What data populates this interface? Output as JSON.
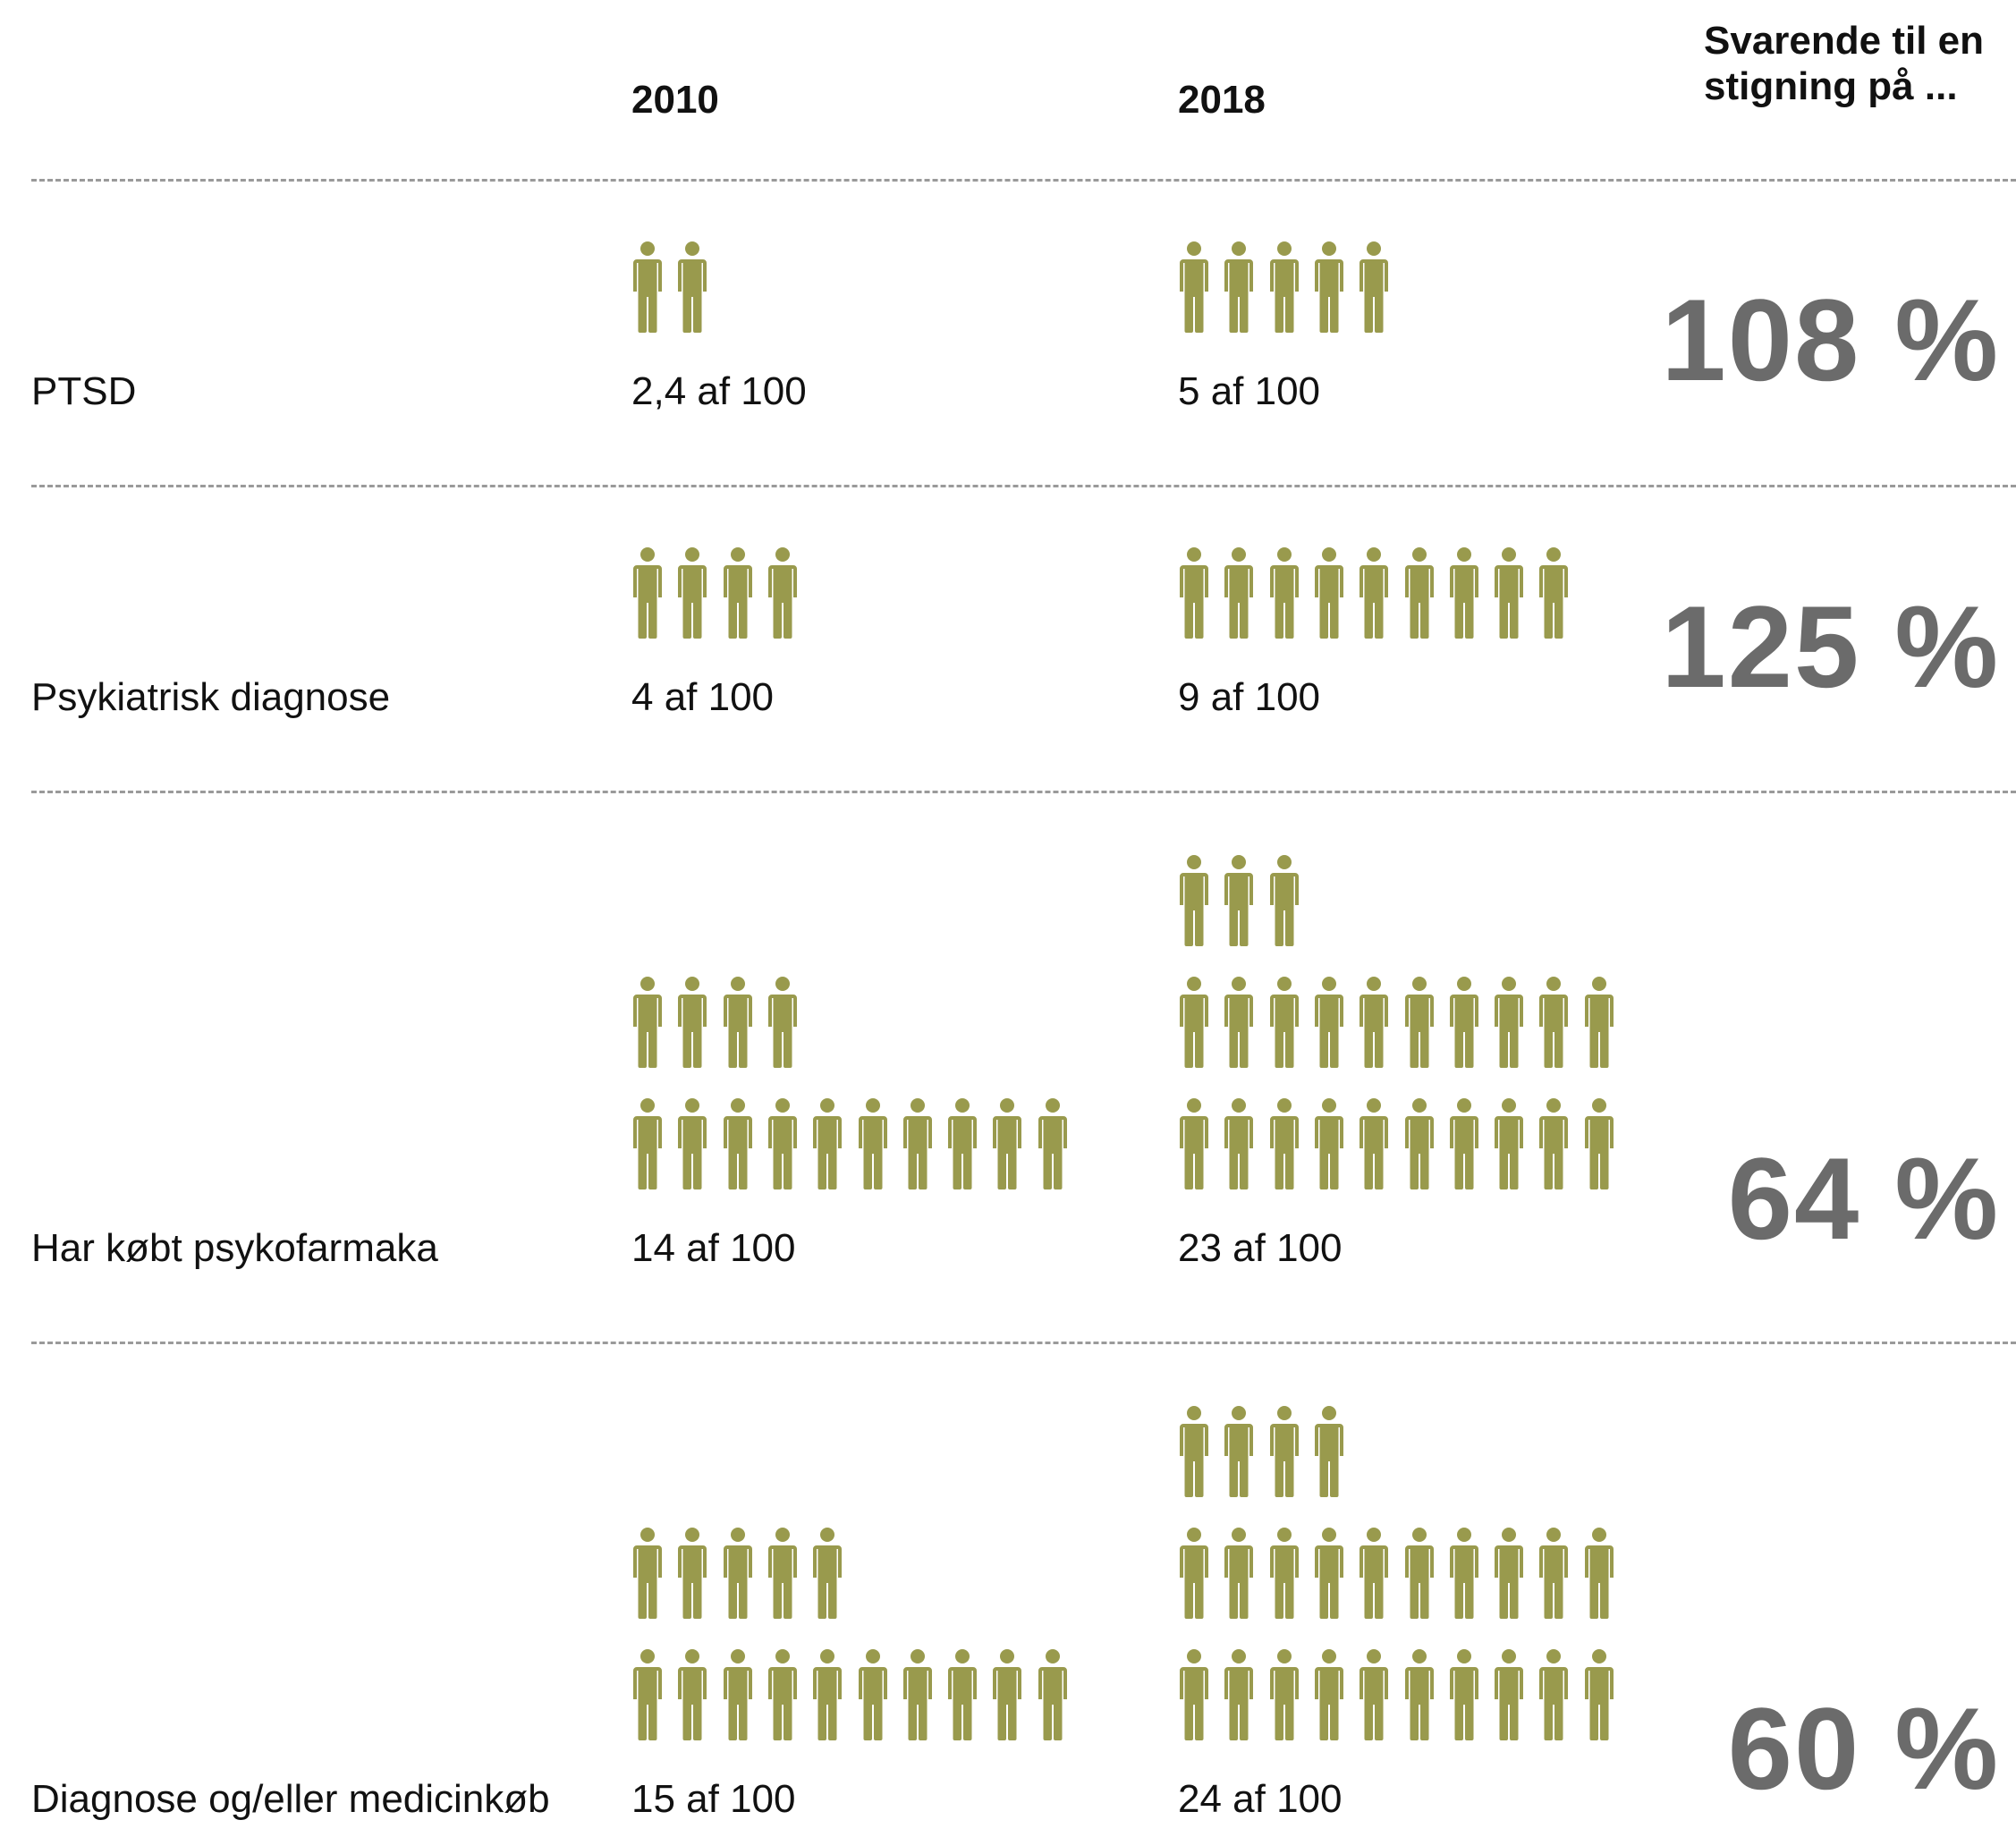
{
  "chart_data": {
    "type": "table",
    "title": "",
    "columns": {
      "year_a": "2010",
      "year_b": "2018",
      "increase": "Svarende til en stigning på ..."
    },
    "icon": {
      "name": "person-icon",
      "color": "#999a4d"
    },
    "rows": [
      {
        "label": "PTSD",
        "v2010": 2.4,
        "t2010": "2,4 af 100",
        "v2018": 5,
        "t2018": "5 af 100",
        "increase": "108 %"
      },
      {
        "label": "Psykiatrisk diagnose",
        "v2010": 4,
        "t2010": "4 af 100",
        "v2018": 9,
        "t2018": "9 af 100",
        "increase": "125 %"
      },
      {
        "label": "Har købt psykofarmaka",
        "v2010": 14,
        "t2010": "14 af 100",
        "v2018": 23,
        "t2018": "23 af 100",
        "increase": "64 %"
      },
      {
        "label": "Diagnose og/eller medicinkøb",
        "v2010": 15,
        "t2010": "15 af 100",
        "v2018": 24,
        "t2018": "24 af 100",
        "increase": "60 %"
      }
    ]
  }
}
